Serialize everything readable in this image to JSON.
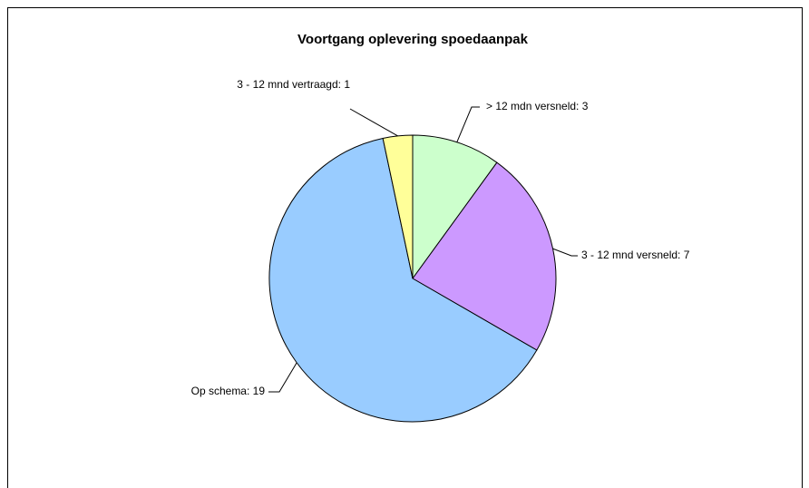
{
  "chart_data": {
    "type": "pie",
    "title": "Voortgang oplevering spoedaanpak",
    "categories": [
      "> 12 mdn versneld: 3",
      "3 - 12 mnd versneld: 7",
      "Op schema: 19",
      "3 - 12 mnd vertraagd: 1"
    ],
    "values": [
      3,
      7,
      19,
      1
    ],
    "colors": [
      "#ccffcc",
      "#cc99ff",
      "#99ccff",
      "#ffff99"
    ]
  }
}
